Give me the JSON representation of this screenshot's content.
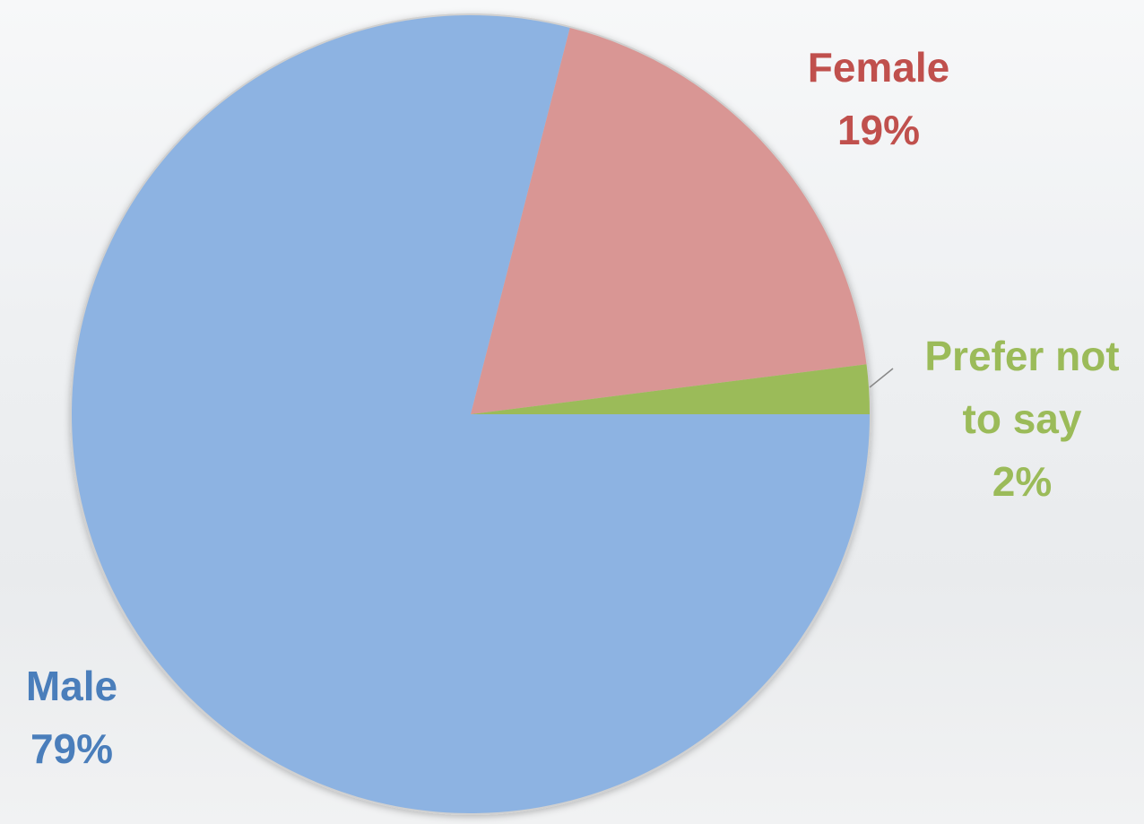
{
  "chart_data": {
    "type": "pie",
    "categories": [
      "Male",
      "Female",
      "Prefer not to say"
    ],
    "values": [
      79,
      19,
      2
    ],
    "value_labels": [
      "79%",
      "19%",
      "2%"
    ],
    "colors": [
      "#8db3e2",
      "#d99694",
      "#9bbb59"
    ],
    "label_colors": [
      "#4a7ebb",
      "#c0504d",
      "#9bbb59"
    ]
  }
}
